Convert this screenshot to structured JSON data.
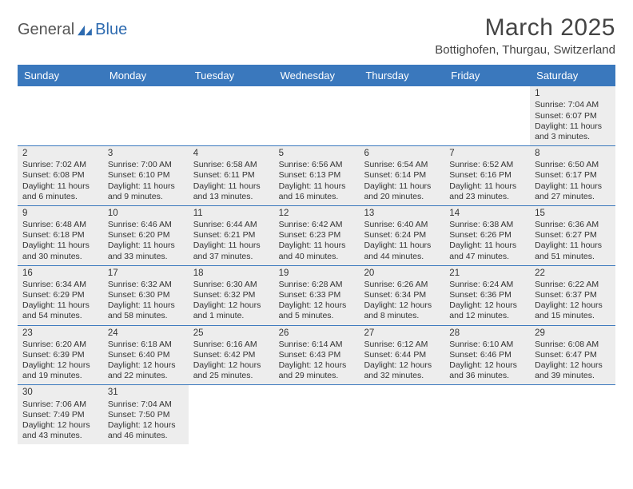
{
  "logo": {
    "textA": "General",
    "textB": "Blue"
  },
  "title": "March 2025",
  "location": "Bottighofen, Thurgau, Switzerland",
  "colors": {
    "header_bg": "#3a78bd",
    "header_text": "#ffffff",
    "shade_bg": "#ededed",
    "border": "#3a78bd",
    "text": "#333333",
    "logo_gray": "#555555",
    "logo_blue": "#2e6bb0"
  },
  "weekdays": [
    "Sunday",
    "Monday",
    "Tuesday",
    "Wednesday",
    "Thursday",
    "Friday",
    "Saturday"
  ],
  "weeks": [
    [
      {
        "empty": true
      },
      {
        "empty": true
      },
      {
        "empty": true
      },
      {
        "empty": true
      },
      {
        "empty": true
      },
      {
        "empty": true
      },
      {
        "day": "1",
        "sunrise": "Sunrise: 7:04 AM",
        "sunset": "Sunset: 6:07 PM",
        "daylight": "Daylight: 11 hours and 3 minutes."
      }
    ],
    [
      {
        "day": "2",
        "sunrise": "Sunrise: 7:02 AM",
        "sunset": "Sunset: 6:08 PM",
        "daylight": "Daylight: 11 hours and 6 minutes."
      },
      {
        "day": "3",
        "sunrise": "Sunrise: 7:00 AM",
        "sunset": "Sunset: 6:10 PM",
        "daylight": "Daylight: 11 hours and 9 minutes."
      },
      {
        "day": "4",
        "sunrise": "Sunrise: 6:58 AM",
        "sunset": "Sunset: 6:11 PM",
        "daylight": "Daylight: 11 hours and 13 minutes."
      },
      {
        "day": "5",
        "sunrise": "Sunrise: 6:56 AM",
        "sunset": "Sunset: 6:13 PM",
        "daylight": "Daylight: 11 hours and 16 minutes."
      },
      {
        "day": "6",
        "sunrise": "Sunrise: 6:54 AM",
        "sunset": "Sunset: 6:14 PM",
        "daylight": "Daylight: 11 hours and 20 minutes."
      },
      {
        "day": "7",
        "sunrise": "Sunrise: 6:52 AM",
        "sunset": "Sunset: 6:16 PM",
        "daylight": "Daylight: 11 hours and 23 minutes."
      },
      {
        "day": "8",
        "sunrise": "Sunrise: 6:50 AM",
        "sunset": "Sunset: 6:17 PM",
        "daylight": "Daylight: 11 hours and 27 minutes."
      }
    ],
    [
      {
        "day": "9",
        "sunrise": "Sunrise: 6:48 AM",
        "sunset": "Sunset: 6:18 PM",
        "daylight": "Daylight: 11 hours and 30 minutes."
      },
      {
        "day": "10",
        "sunrise": "Sunrise: 6:46 AM",
        "sunset": "Sunset: 6:20 PM",
        "daylight": "Daylight: 11 hours and 33 minutes."
      },
      {
        "day": "11",
        "sunrise": "Sunrise: 6:44 AM",
        "sunset": "Sunset: 6:21 PM",
        "daylight": "Daylight: 11 hours and 37 minutes."
      },
      {
        "day": "12",
        "sunrise": "Sunrise: 6:42 AM",
        "sunset": "Sunset: 6:23 PM",
        "daylight": "Daylight: 11 hours and 40 minutes."
      },
      {
        "day": "13",
        "sunrise": "Sunrise: 6:40 AM",
        "sunset": "Sunset: 6:24 PM",
        "daylight": "Daylight: 11 hours and 44 minutes."
      },
      {
        "day": "14",
        "sunrise": "Sunrise: 6:38 AM",
        "sunset": "Sunset: 6:26 PM",
        "daylight": "Daylight: 11 hours and 47 minutes."
      },
      {
        "day": "15",
        "sunrise": "Sunrise: 6:36 AM",
        "sunset": "Sunset: 6:27 PM",
        "daylight": "Daylight: 11 hours and 51 minutes."
      }
    ],
    [
      {
        "day": "16",
        "sunrise": "Sunrise: 6:34 AM",
        "sunset": "Sunset: 6:29 PM",
        "daylight": "Daylight: 11 hours and 54 minutes."
      },
      {
        "day": "17",
        "sunrise": "Sunrise: 6:32 AM",
        "sunset": "Sunset: 6:30 PM",
        "daylight": "Daylight: 11 hours and 58 minutes."
      },
      {
        "day": "18",
        "sunrise": "Sunrise: 6:30 AM",
        "sunset": "Sunset: 6:32 PM",
        "daylight": "Daylight: 12 hours and 1 minute."
      },
      {
        "day": "19",
        "sunrise": "Sunrise: 6:28 AM",
        "sunset": "Sunset: 6:33 PM",
        "daylight": "Daylight: 12 hours and 5 minutes."
      },
      {
        "day": "20",
        "sunrise": "Sunrise: 6:26 AM",
        "sunset": "Sunset: 6:34 PM",
        "daylight": "Daylight: 12 hours and 8 minutes."
      },
      {
        "day": "21",
        "sunrise": "Sunrise: 6:24 AM",
        "sunset": "Sunset: 6:36 PM",
        "daylight": "Daylight: 12 hours and 12 minutes."
      },
      {
        "day": "22",
        "sunrise": "Sunrise: 6:22 AM",
        "sunset": "Sunset: 6:37 PM",
        "daylight": "Daylight: 12 hours and 15 minutes."
      }
    ],
    [
      {
        "day": "23",
        "sunrise": "Sunrise: 6:20 AM",
        "sunset": "Sunset: 6:39 PM",
        "daylight": "Daylight: 12 hours and 19 minutes."
      },
      {
        "day": "24",
        "sunrise": "Sunrise: 6:18 AM",
        "sunset": "Sunset: 6:40 PM",
        "daylight": "Daylight: 12 hours and 22 minutes."
      },
      {
        "day": "25",
        "sunrise": "Sunrise: 6:16 AM",
        "sunset": "Sunset: 6:42 PM",
        "daylight": "Daylight: 12 hours and 25 minutes."
      },
      {
        "day": "26",
        "sunrise": "Sunrise: 6:14 AM",
        "sunset": "Sunset: 6:43 PM",
        "daylight": "Daylight: 12 hours and 29 minutes."
      },
      {
        "day": "27",
        "sunrise": "Sunrise: 6:12 AM",
        "sunset": "Sunset: 6:44 PM",
        "daylight": "Daylight: 12 hours and 32 minutes."
      },
      {
        "day": "28",
        "sunrise": "Sunrise: 6:10 AM",
        "sunset": "Sunset: 6:46 PM",
        "daylight": "Daylight: 12 hours and 36 minutes."
      },
      {
        "day": "29",
        "sunrise": "Sunrise: 6:08 AM",
        "sunset": "Sunset: 6:47 PM",
        "daylight": "Daylight: 12 hours and 39 minutes."
      }
    ],
    [
      {
        "day": "30",
        "sunrise": "Sunrise: 7:06 AM",
        "sunset": "Sunset: 7:49 PM",
        "daylight": "Daylight: 12 hours and 43 minutes."
      },
      {
        "day": "31",
        "sunrise": "Sunrise: 7:04 AM",
        "sunset": "Sunset: 7:50 PM",
        "daylight": "Daylight: 12 hours and 46 minutes."
      },
      {
        "empty": true
      },
      {
        "empty": true
      },
      {
        "empty": true
      },
      {
        "empty": true
      },
      {
        "empty": true
      }
    ]
  ]
}
